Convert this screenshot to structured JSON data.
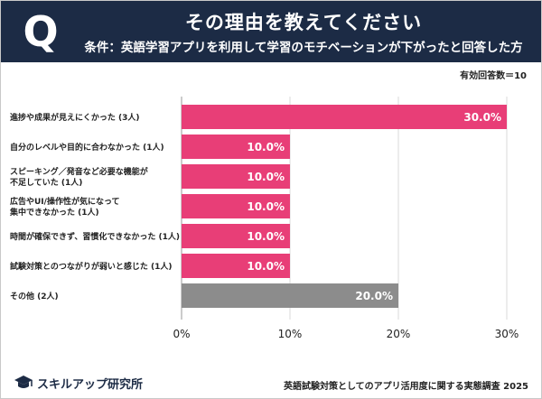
{
  "header": {
    "q_mark": "Q",
    "title": "その理由を教えてください",
    "subtitle": "条件：英語学習アプリを利用して学習のモチベーションが下がったと回答した方"
  },
  "note": "有効回答数＝10",
  "footer": {
    "logo": "スキルアップ研究所",
    "source": "英語試験対策としてのアプリ活用度に関する実態調査 2025"
  },
  "colors": {
    "accent": "#e83e77",
    "gray": "#8c8c8c",
    "header_bg": "#1c2b45"
  },
  "chart_data": {
    "type": "bar",
    "orientation": "horizontal",
    "categories": [
      [
        "進捗や成果が見えにくかった (3人)"
      ],
      [
        "自分のレベルや目的に合わなかった (1人)"
      ],
      [
        "スピーキング／発音など必要な機能が",
        "不足していた (1人)"
      ],
      [
        "広告やUI/操作性が気になって",
        "集中できなかった (1人)"
      ],
      [
        "時間が確保できず、習慣化できなかった (1人)"
      ],
      [
        "試験対策とのつながりが弱いと感じた (1人)"
      ],
      [
        "その他 (2人)"
      ]
    ],
    "values": [
      30.0,
      10.0,
      10.0,
      10.0,
      10.0,
      10.0,
      20.0
    ],
    "value_labels": [
      "30.0%",
      "10.0%",
      "10.0%",
      "10.0%",
      "10.0%",
      "10.0%",
      "20.0%"
    ],
    "bar_colors": [
      "#e83e77",
      "#e83e77",
      "#e83e77",
      "#e83e77",
      "#e83e77",
      "#e83e77",
      "#8c8c8c"
    ],
    "xlim": [
      0,
      30
    ],
    "xticks": [
      0,
      10,
      20,
      30
    ],
    "xtick_labels": [
      "0%",
      "10%",
      "20%",
      "30%"
    ],
    "grid": true
  }
}
